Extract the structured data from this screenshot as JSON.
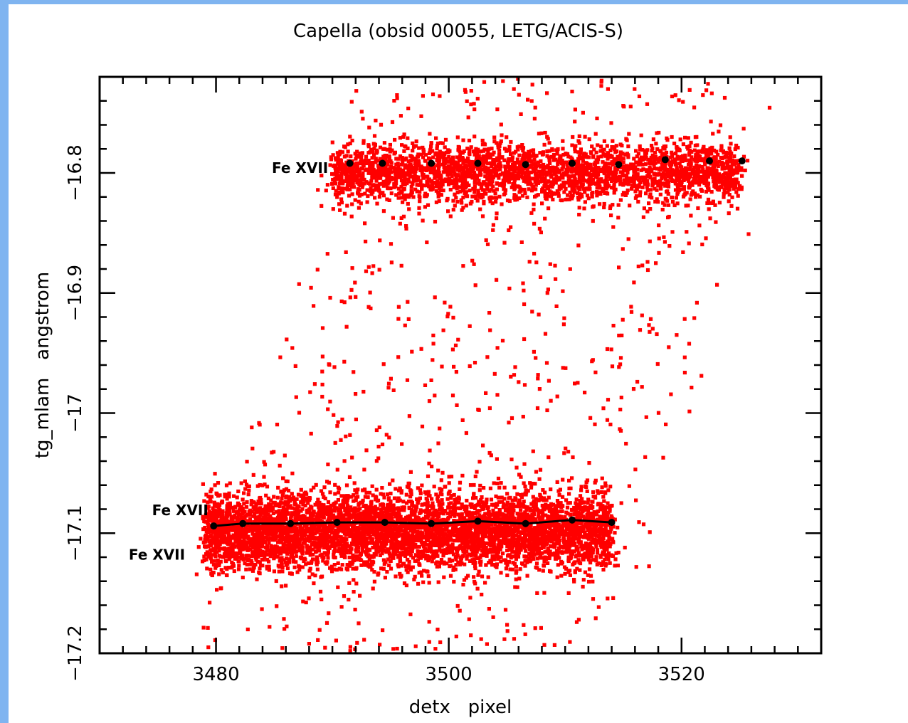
{
  "chart_data": {
    "type": "scatter",
    "title": "Capella (obsid 00055, LETG/ACIS-S)",
    "xlabel": "detx   pixel",
    "ylabel": "tg_mlam   angstrom",
    "xlim": [
      3470,
      3532
    ],
    "ylim": [
      -17.2,
      -16.72
    ],
    "x_ticks": [
      3480,
      3500,
      3520
    ],
    "y_ticks": [
      -16.8,
      -16.9,
      -17,
      -17.1,
      -17.2
    ],
    "y_tick_labels": [
      "−16.8",
      "−16.9",
      "−17",
      "−17.1",
      "−17.2"
    ],
    "grid": false,
    "colors": {
      "events": "#ff0000",
      "fit": "#000000",
      "background_border": "#7fb4f0"
    },
    "event_bands": [
      {
        "line": "Fe XVII upper",
        "x_range": [
          3490,
          3525
        ],
        "y_center": -16.8,
        "y_spread": 0.012,
        "count": 2800
      },
      {
        "line": "Fe XVII lower",
        "x_range": [
          3479,
          3514
        ],
        "y_center": -17.098,
        "y_spread": 0.016,
        "count": 5200
      }
    ],
    "series": [
      {
        "name": "",
        "type": "line-markers",
        "x": [
          3491.5,
          3494.3,
          3498.5,
          3502.5,
          3506.6,
          3510.6,
          3514.6,
          3518.6,
          3522.4,
          3525.2
        ],
        "y": [
          -16.792,
          -16.792,
          -16.792,
          -16.792,
          -16.793,
          -16.792,
          -16.793,
          -16.789,
          -16.79,
          -16.79
        ]
      },
      {
        "name": "",
        "type": "line-markers",
        "x": [
          3479.8,
          3482.3,
          3486.4,
          3490.4,
          3494.5,
          3498.5,
          3502.5,
          3506.6,
          3510.6,
          3514.0
        ],
        "y": [
          -17.094,
          -17.092,
          -17.092,
          -17.091,
          -17.091,
          -17.092,
          -17.09,
          -17.092,
          -17.089,
          -17.091
        ]
      }
    ],
    "annotations": [
      {
        "text": "Fe XVII",
        "x": 3484.8,
        "y": -16.8
      },
      {
        "text": "Fe XVII",
        "x": 3474.5,
        "y": -17.085
      },
      {
        "text": "Fe XVII",
        "x": 3472.5,
        "y": -17.122
      }
    ]
  }
}
